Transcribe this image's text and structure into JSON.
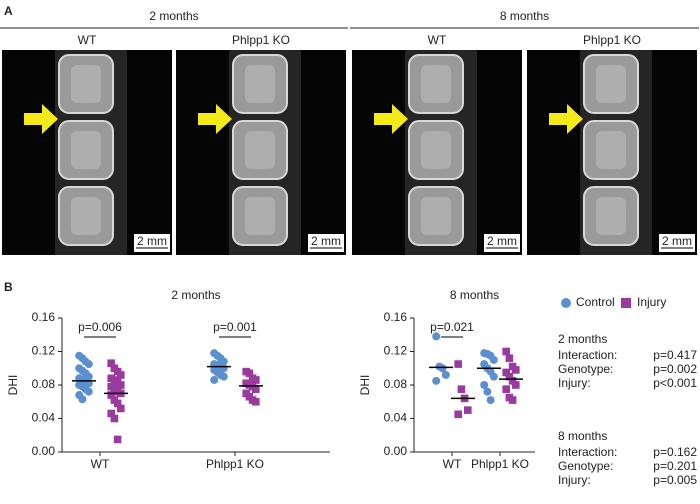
{
  "panel_a": {
    "label": "A",
    "groups": [
      {
        "title": "2 months",
        "images": [
          {
            "label": "WT",
            "scale": "2 mm"
          },
          {
            "label": "Phlpp1 KO",
            "scale": "2 mm"
          }
        ]
      },
      {
        "title": "8 months",
        "images": [
          {
            "label": "WT",
            "scale": "2 mm"
          },
          {
            "label": "Phlpp1 KO",
            "scale": "2 mm"
          }
        ]
      }
    ]
  },
  "panel_b_label": "B",
  "chart_data": [
    {
      "type": "dot",
      "title": "2 months",
      "y_label": "DHI",
      "categories": [
        "WT",
        "Phlpp1 KO"
      ],
      "ylim": [
        0,
        0.16
      ],
      "yticks": [
        {
          "value": 0,
          "label": "0.00"
        },
        {
          "value": 0.04,
          "label": "0.04"
        },
        {
          "value": 0.08,
          "label": "0.08"
        },
        {
          "value": 0.12,
          "label": "0.12"
        },
        {
          "value": 0.16,
          "label": "0.16"
        }
      ],
      "series": [
        {
          "name": "Control",
          "color": "#5b8fd0",
          "marker": "circle",
          "values": [
            [
              0.115,
              0.112,
              0.108,
              0.105,
              0.1,
              0.097,
              0.094,
              0.09,
              0.088,
              0.086,
              0.084,
              0.082,
              0.08,
              0.078,
              0.075,
              0.072,
              0.068,
              0.063
            ],
            [
              0.118,
              0.115,
              0.112,
              0.108,
              0.105,
              0.104,
              0.102,
              0.1,
              0.098,
              0.095,
              0.092,
              0.09,
              0.086
            ]
          ],
          "means": [
            0.085,
            0.102
          ]
        },
        {
          "name": "Injury",
          "color": "#9b3a9e",
          "marker": "square",
          "values": [
            [
              0.106,
              0.1,
              0.096,
              0.092,
              0.088,
              0.086,
              0.084,
              0.08,
              0.078,
              0.075,
              0.072,
              0.07,
              0.068,
              0.062,
              0.058,
              0.052,
              0.046,
              0.04,
              0.015
            ],
            [
              0.096,
              0.094,
              0.088,
              0.086,
              0.082,
              0.08,
              0.078,
              0.075,
              0.07,
              0.066,
              0.062,
              0.06
            ]
          ],
          "means": [
            0.07,
            0.079
          ]
        }
      ],
      "comparisons": [
        {
          "category": 0,
          "label": "p=0.006"
        },
        {
          "category": 1,
          "label": "p=0.001"
        }
      ]
    },
    {
      "type": "dot",
      "title": "8 months",
      "y_label": "DHI",
      "categories": [
        "WT",
        "Phlpp1 KO"
      ],
      "ylim": [
        0,
        0.16
      ],
      "yticks": [
        {
          "value": 0,
          "label": "0.00"
        },
        {
          "value": 0.04,
          "label": "0.04"
        },
        {
          "value": 0.08,
          "label": "0.08"
        },
        {
          "value": 0.12,
          "label": "0.12"
        },
        {
          "value": 0.16,
          "label": "0.16"
        }
      ],
      "series": [
        {
          "color": "#5b8fd0",
          "marker": "circle",
          "values": [
            [
              0.138,
              0.102,
              0.1,
              0.092,
              0.085
            ],
            [
              0.118,
              0.117,
              0.115,
              0.11,
              0.105,
              0.1,
              0.096,
              0.09,
              0.08,
              0.072,
              0.062
            ]
          ],
          "means": [
            0.101,
            0.1
          ]
        },
        {
          "color": "#9b3a9e",
          "marker": "square",
          "values": [
            [
              0.105,
              0.075,
              0.064,
              0.05,
              0.045
            ],
            [
              0.12,
              0.112,
              0.102,
              0.098,
              0.095,
              0.09,
              0.085,
              0.08,
              0.075,
              0.065,
              0.062
            ]
          ],
          "means": [
            0.064,
            0.087
          ]
        }
      ],
      "comparisons": [
        {
          "category": 0,
          "label": "p=0.021"
        }
      ]
    }
  ],
  "stats": [
    {
      "title": "2 months",
      "rows": [
        [
          "Interaction:",
          "p=0.417"
        ],
        [
          "Genotype:",
          "p=0.002"
        ],
        [
          "Injury:",
          "p<0.001"
        ]
      ]
    },
    {
      "title": "8 months",
      "rows": [
        [
          "Interaction:",
          "p=0.162"
        ],
        [
          "Genotype:",
          "p=0.201"
        ],
        [
          "Injury:",
          "p=0.005"
        ]
      ]
    }
  ]
}
